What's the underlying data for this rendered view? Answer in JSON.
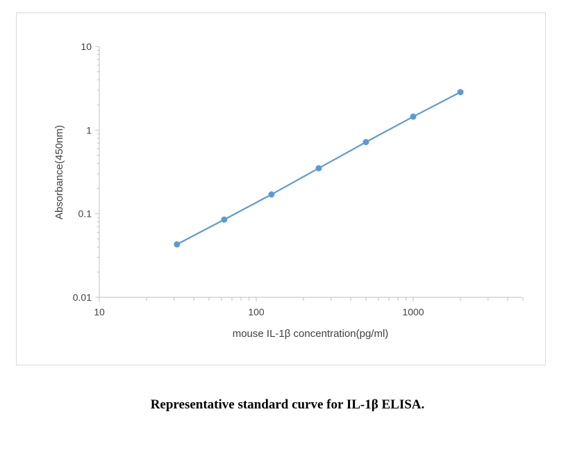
{
  "chart_data": {
    "type": "line",
    "title": "",
    "xlabel": "mouse IL-1β concentration(pg/ml)",
    "ylabel": "Absorbance(450nm)",
    "x_scale": "log",
    "y_scale": "log",
    "xlim": [
      10,
      5000
    ],
    "ylim": [
      0.01,
      10
    ],
    "x_ticks": [
      "10",
      "100",
      "1000"
    ],
    "y_ticks": [
      "0.01",
      "0.1",
      "1",
      "10"
    ],
    "grid": false,
    "legend": "none",
    "series": [
      {
        "color": "#5b9bd5",
        "x": [
          31.25,
          62.5,
          125,
          250,
          500,
          1000,
          2000
        ],
        "y": [
          0.043,
          0.085,
          0.17,
          0.35,
          0.72,
          1.45,
          2.85
        ]
      }
    ]
  },
  "caption": "Representative standard curve for IL-1β ELISA."
}
